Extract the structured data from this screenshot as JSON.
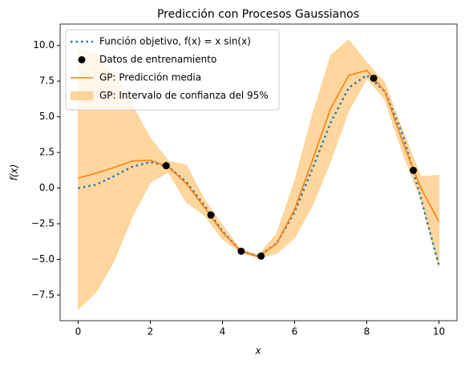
{
  "chart_data": {
    "type": "line",
    "title": "Predicción con Procesos Gaussianos",
    "xlabel": "x",
    "ylabel": "f(x)",
    "x": [
      0,
      0.5,
      1,
      1.5,
      2,
      2.5,
      3,
      3.5,
      4,
      4.5,
      5,
      5.5,
      6,
      6.5,
      7,
      7.5,
      8,
      8.5,
      9,
      9.5,
      10
    ],
    "series": [
      {
        "name": "Función objetivo, f(x) = x sin(x)",
        "type": "line",
        "style": "dotted",
        "color": "#1f77b4",
        "values": [
          0,
          0.24,
          0.84,
          1.5,
          1.82,
          1.5,
          0.42,
          -1.23,
          -3.03,
          -4.4,
          -4.79,
          -3.88,
          -1.68,
          1.4,
          4.6,
          7.03,
          7.92,
          6.79,
          3.71,
          -0.71,
          -5.44
        ]
      },
      {
        "name": "Datos de entrenamiento",
        "type": "scatter",
        "color": "#000000",
        "x": [
          2.44,
          3.68,
          4.52,
          5.07,
          8.19,
          9.29
        ],
        "values": [
          1.57,
          -1.89,
          -4.43,
          -4.77,
          7.7,
          1.24
        ]
      },
      {
        "name": "GP: Predicción media",
        "type": "line",
        "style": "solid",
        "color": "#ff7f0e",
        "values": [
          0.7,
          1.05,
          1.45,
          1.9,
          1.95,
          1.5,
          0.3,
          -1.35,
          -3.1,
          -4.4,
          -4.8,
          -3.9,
          -1.5,
          2.0,
          5.6,
          7.9,
          8.25,
          6.8,
          3.2,
          0.0,
          -2.35
        ]
      },
      {
        "name": "GP: Intervalo de confianza del 95%",
        "type": "area",
        "color": "#ffa629",
        "lower": [
          -8.5,
          -7.3,
          -5.1,
          -2.0,
          0.4,
          1.1,
          -1.0,
          -1.9,
          -3.6,
          -4.5,
          -4.9,
          -4.6,
          -3.5,
          -1.2,
          1.9,
          5.4,
          7.7,
          6.2,
          2.4,
          -0.8,
          -5.6
        ],
        "upper": [
          9.8,
          9.4,
          8.0,
          5.8,
          3.5,
          1.9,
          1.6,
          -0.8,
          -2.6,
          -4.3,
          -4.7,
          -3.2,
          0.5,
          5.2,
          9.3,
          10.4,
          8.8,
          7.4,
          4.0,
          0.8,
          0.9
        ]
      }
    ],
    "xlim": [
      -0.5,
      10.5
    ],
    "ylim": [
      -9.3,
      11.5
    ],
    "xticks": [
      0,
      2,
      4,
      6,
      8,
      10
    ],
    "yticks": [
      {
        "value": -7.5,
        "label": "−7.5"
      },
      {
        "value": -5,
        "label": "−5.0"
      },
      {
        "value": -2.5,
        "label": "−2.5"
      },
      {
        "value": 0,
        "label": "0.0"
      },
      2.5,
      {
        "value": 5,
        "label": "5.0"
      },
      7.5,
      {
        "value": 10,
        "label": "10.0"
      }
    ],
    "legend": "upper left"
  }
}
